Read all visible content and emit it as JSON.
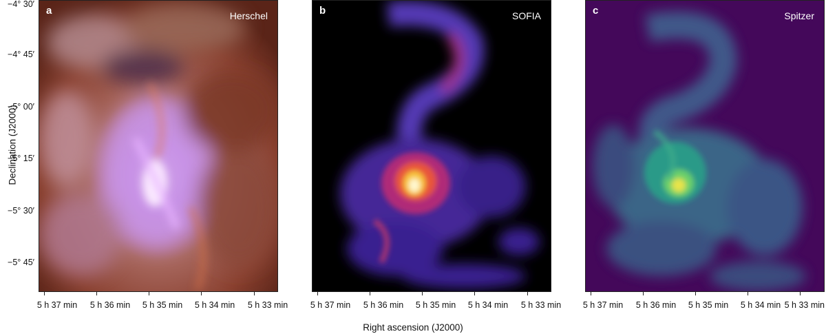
{
  "axes": {
    "y_label": "Declination (J2000)",
    "x_label": "Right ascension (J2000)",
    "y_ticks": [
      "−4° 30′",
      "−4° 45′",
      "−5° 00′",
      "−5° 15′",
      "−5° 30′",
      "−5° 45′"
    ],
    "x_ticks": [
      "5 h 37 min",
      "5 h 36 min",
      "5 h 35 min",
      "5 h 34 min",
      "5 h 33 min"
    ]
  },
  "panels": [
    {
      "letter": "a",
      "name": "Herschel"
    },
    {
      "letter": "b",
      "name": "SOFIA"
    },
    {
      "letter": "c",
      "name": "Spitzer"
    }
  ]
}
